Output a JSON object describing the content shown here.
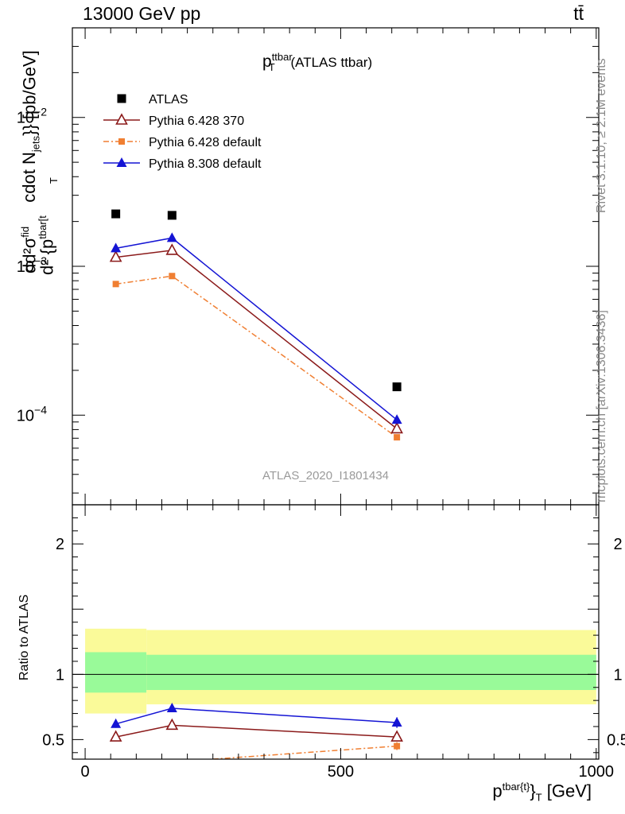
{
  "header": {
    "left": "13000 GeV pp",
    "right": "tt̄"
  },
  "side_labels": {
    "rivet": "Rivet 3.1.10, ≥ 2.1M events",
    "mcplots": "mcplots.cern.ch [arXiv:1306.3436]"
  },
  "colors": {
    "atlas": "#000000",
    "py6_370": "#8b1a1a",
    "py6_def": "#f07f32",
    "py8_def": "#1414d4",
    "band_inner": "#99fa99",
    "band_outer": "#fafa99"
  },
  "chart_data": [
    {
      "type": "scatter",
      "panel": "main",
      "title": "p_T^{ttbar} (ATLAS ttbar)",
      "title_parts": {
        "p": "p",
        "sup": "ttbar",
        "sub": "T",
        "rest": "(ATLAS ttbar)"
      },
      "ylabel": "d(d^2σ^fid / d^2{p_T^tbar[t}} cdot N_jets}} [pb/GeV]",
      "ylabel_parts": {
        "main": "cdot N",
        "jets_sub": "jets",
        "tail": "}} [pb/GeV]",
        "d2sigma": "d²σ",
        "fid": "fid",
        "d2p": "d² {p",
        "tbar": "tbar[t",
        "T": "T",
        "d": "d"
      },
      "yscale": "log",
      "ylim": [
        2.5e-05,
        0.04
      ],
      "yticks": [
        {
          "value": 0.0001,
          "label": "10",
          "exp": "−4"
        },
        {
          "value": 0.001,
          "label": "10",
          "exp": "−3"
        },
        {
          "value": 0.01,
          "label": "10",
          "exp": "−2"
        }
      ],
      "watermark": "ATLAS_2020_I1801434",
      "legend_position": "top-left",
      "series": [
        {
          "name": "ATLAS",
          "key": "atlas",
          "marker": "square",
          "x": [
            60,
            170,
            610
          ],
          "y": [
            0.00225,
            0.0022,
            0.000155
          ]
        },
        {
          "name": "Pythia 6.428 370",
          "key": "py6_370",
          "marker": "open-triangle",
          "x": [
            60,
            170,
            610
          ],
          "y": [
            0.00115,
            0.00128,
            8.1e-05
          ]
        },
        {
          "name": "Pythia 6.428 default",
          "key": "py6_def",
          "marker": "small-square",
          "dash": "dashdot",
          "x": [
            60,
            170,
            610
          ],
          "y": [
            0.00076,
            0.00086,
            7.1e-05
          ]
        },
        {
          "name": "Pythia 8.308 default",
          "key": "py8_def",
          "marker": "filled-triangle",
          "x": [
            60,
            170,
            610
          ],
          "y": [
            0.00132,
            0.00155,
            9.3e-05
          ]
        }
      ]
    },
    {
      "type": "line",
      "panel": "ratio",
      "ylabel": "Ratio to ATLAS",
      "xlabel": "p^{tbar{t}}_T [GeV]",
      "xlabel_parts": {
        "p": "p",
        "sup": "tbar{t}",
        "brace": "}",
        "sub": "T",
        "unit": "[GeV]"
      },
      "xlim": [
        -25,
        1005
      ],
      "ylim": [
        0.35,
        2.3
      ],
      "xticks": [
        0,
        500,
        1000
      ],
      "yticks": [
        0.5,
        1,
        2
      ],
      "bands": [
        {
          "x0": 0,
          "x1": 120,
          "inner": [
            0.86,
            1.17
          ],
          "outer": [
            0.7,
            1.35
          ]
        },
        {
          "x0": 120,
          "x1": 1000,
          "inner": [
            0.88,
            1.15
          ],
          "outer": [
            0.77,
            1.34
          ]
        }
      ],
      "series": [
        {
          "name": "Pythia 6.428 370",
          "key": "py6_370",
          "marker": "open-triangle",
          "x": [
            60,
            170,
            610
          ],
          "y": [
            0.52,
            0.61,
            0.52
          ],
          "err": [
            0.02,
            0.02,
            0.03
          ]
        },
        {
          "name": "Pythia 6.428 default",
          "key": "py6_def",
          "marker": "small-square",
          "dash": "dashdot",
          "x": [
            250,
            610
          ],
          "y": [
            0.35,
            0.45
          ],
          "err": [
            0,
            0.03
          ]
        },
        {
          "name": "Pythia 8.308 default",
          "key": "py8_def",
          "marker": "filled-triangle",
          "x": [
            60,
            170,
            610
          ],
          "y": [
            0.62,
            0.74,
            0.63
          ],
          "err": [
            0.03,
            0.03,
            0.04
          ]
        }
      ]
    }
  ]
}
